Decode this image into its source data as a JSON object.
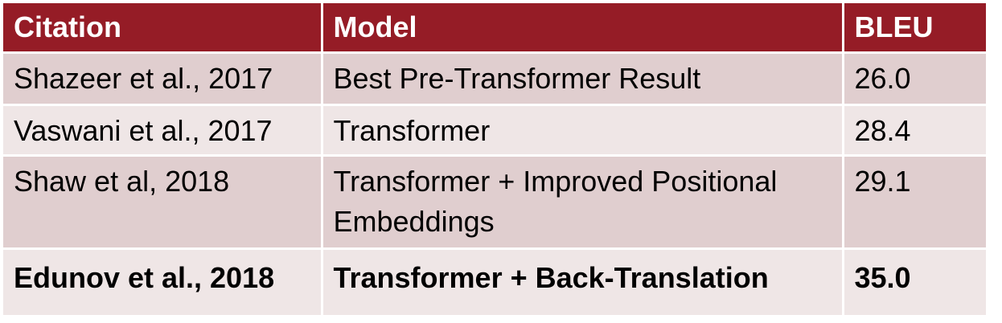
{
  "table": {
    "headers": [
      "Citation",
      "Model",
      "BLEU"
    ],
    "rows": [
      {
        "citation": "Shazeer et al., 2017",
        "model": "Best Pre-Transformer Result",
        "bleu": "26.0"
      },
      {
        "citation": "Vaswani et al., 2017",
        "model": "Transformer",
        "bleu": "28.4"
      },
      {
        "citation": "Shaw et al, 2018",
        "model": "Transformer + Improved Positional Embeddings",
        "bleu": "29.1"
      },
      {
        "citation": "Edunov et al., 2018",
        "model": "Transformer + Back-Translation",
        "bleu": "35.0"
      }
    ]
  },
  "colors": {
    "header_bg": "#951c26",
    "header_text": "#ffffff",
    "row_dark": "#e0cecf",
    "row_light": "#efe6e6"
  }
}
